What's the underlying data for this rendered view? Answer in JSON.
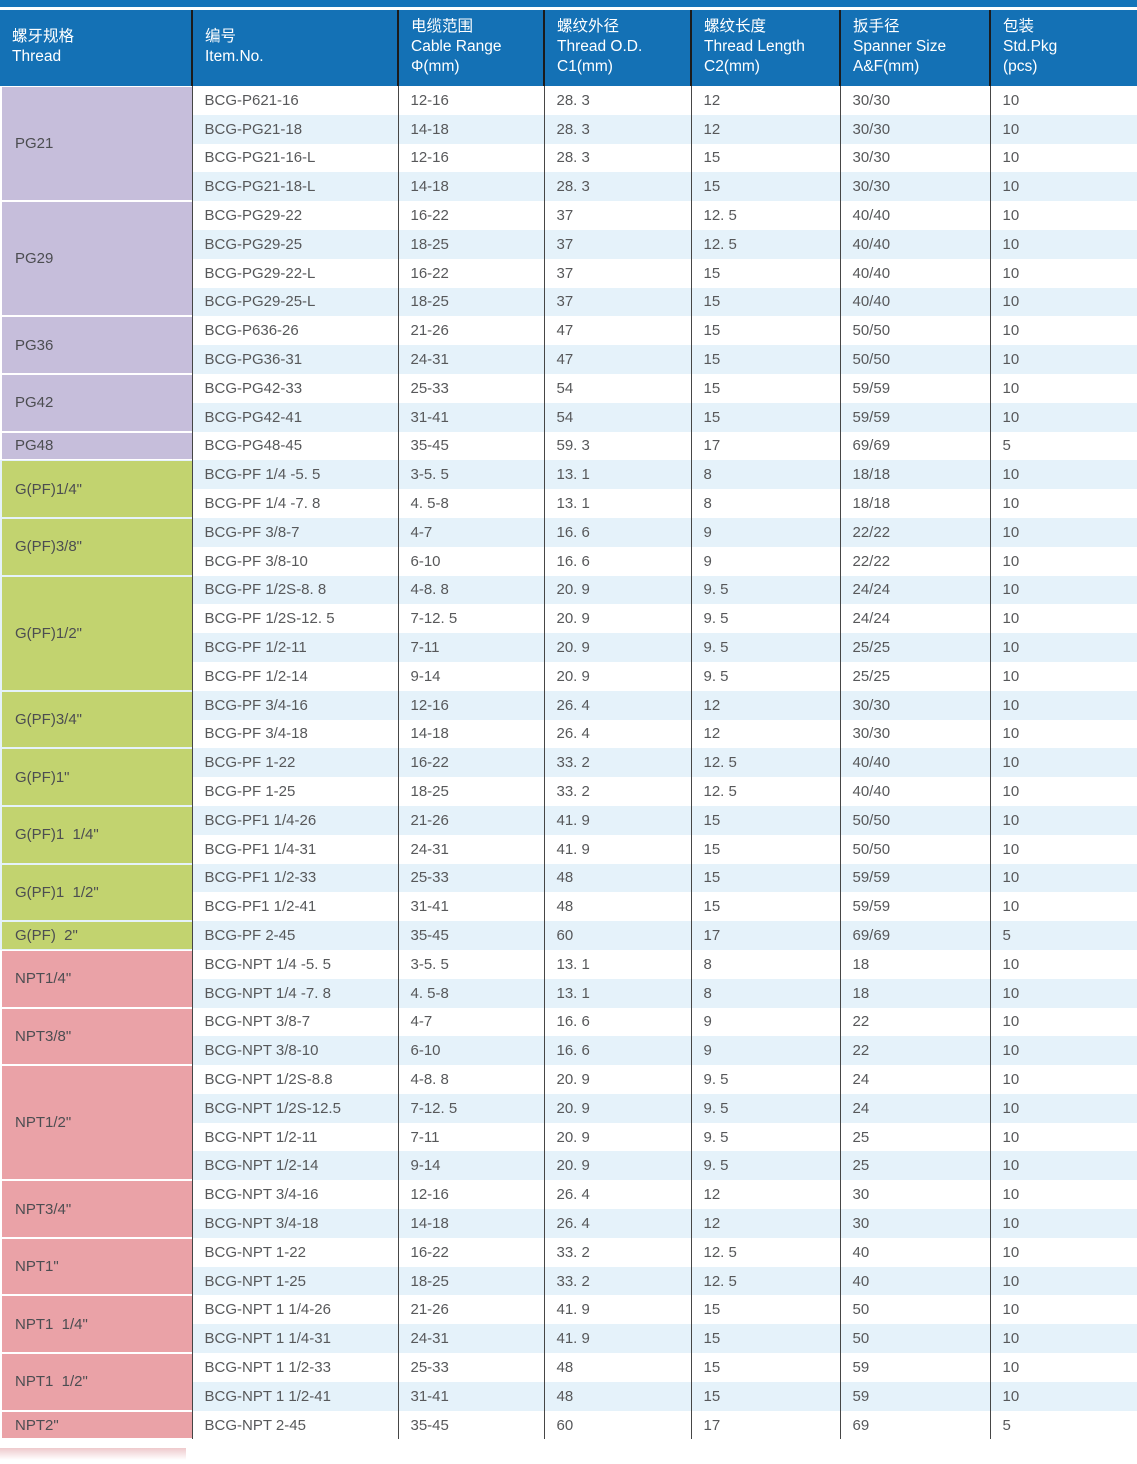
{
  "colors": {
    "top_strip": "#1474b9",
    "header_bg": "#1471b5",
    "header_text": "#ffffff",
    "row_bg": "#ffffff",
    "row_alt_bg": "#e5f2fa",
    "group_pg_bg": "#c6bedb",
    "group_gpf_bg": "#c2d36f",
    "group_npt_bg": "#eaa2a7",
    "body_text": "#57585a",
    "group_text": "#4c4d51",
    "bottom_fade": "#eec9cc"
  },
  "table": {
    "columns": [
      {
        "zh": "螺牙规格",
        "en": "Thread",
        "sub": ""
      },
      {
        "zh": "编号",
        "en": "Item.No.",
        "sub": ""
      },
      {
        "zh": "电缆范围",
        "en": "Cable Range",
        "sub": "Φ(mm)"
      },
      {
        "zh": "螺纹外径",
        "en": "Thread O.D.",
        "sub": "C1(mm)"
      },
      {
        "zh": "螺纹长度",
        "en": "Thread Length",
        "sub": "C2(mm)"
      },
      {
        "zh": "扳手径",
        "en": "Spanner Size",
        "sub": "A&F(mm)"
      },
      {
        "zh": "包装",
        "en": "Std.Pkg",
        "sub": "(pcs)"
      }
    ],
    "groups": [
      {
        "thread": "PG21",
        "color_key": "pg",
        "rows": [
          [
            "BCG-P621-16",
            "12-16",
            "28. 3",
            "12",
            "30/30",
            "10"
          ],
          [
            "BCG-PG21-18",
            "14-18",
            "28. 3",
            "12",
            "30/30",
            "10"
          ],
          [
            "BCG-PG21-16-L",
            "12-16",
            "28. 3",
            "15",
            "30/30",
            "10"
          ],
          [
            "BCG-PG21-18-L",
            "14-18",
            "28. 3",
            "15",
            "30/30",
            "10"
          ]
        ]
      },
      {
        "thread": "PG29",
        "color_key": "pg",
        "rows": [
          [
            "BCG-PG29-22",
            "16-22",
            "37",
            "12. 5",
            "40/40",
            "10"
          ],
          [
            "BCG-PG29-25",
            "18-25",
            "37",
            "12. 5",
            "40/40",
            "10"
          ],
          [
            "BCG-PG29-22-L",
            "16-22",
            "37",
            "15",
            "40/40",
            "10"
          ],
          [
            "BCG-PG29-25-L",
            "18-25",
            "37",
            "15",
            "40/40",
            "10"
          ]
        ]
      },
      {
        "thread": "PG36",
        "color_key": "pg",
        "rows": [
          [
            "BCG-P636-26",
            "21-26",
            "47",
            "15",
            "50/50",
            "10"
          ],
          [
            "BCG-PG36-31",
            "24-31",
            "47",
            "15",
            "50/50",
            "10"
          ]
        ]
      },
      {
        "thread": "PG42",
        "color_key": "pg",
        "rows": [
          [
            "BCG-PG42-33",
            "25-33",
            "54",
            "15",
            "59/59",
            "10"
          ],
          [
            "BCG-PG42-41",
            "31-41",
            "54",
            "15",
            "59/59",
            "10"
          ]
        ]
      },
      {
        "thread": "PG48",
        "color_key": "pg",
        "rows": [
          [
            "BCG-PG48-45",
            "35-45",
            "59. 3",
            "17",
            "69/69",
            "5"
          ]
        ]
      },
      {
        "thread": "G(PF)1/4\"",
        "color_key": "gpf",
        "rows": [
          [
            "BCG-PF 1/4 -5. 5",
            "3-5. 5",
            "13. 1",
            "8",
            "18/18",
            "10"
          ],
          [
            "BCG-PF 1/4 -7. 8",
            "4. 5-8",
            "13. 1",
            "8",
            "18/18",
            "10"
          ]
        ]
      },
      {
        "thread": "G(PF)3/8\"",
        "color_key": "gpf",
        "rows": [
          [
            "BCG-PF 3/8-7",
            "4-7",
            "16. 6",
            "9",
            "22/22",
            "10"
          ],
          [
            "BCG-PF 3/8-10",
            "6-10",
            "16. 6",
            "9",
            "22/22",
            "10"
          ]
        ]
      },
      {
        "thread": "G(PF)1/2\"",
        "color_key": "gpf",
        "rows": [
          [
            "BCG-PF 1/2S-8. 8",
            "4-8. 8",
            "20. 9",
            "9. 5",
            "24/24",
            "10"
          ],
          [
            "BCG-PF 1/2S-12. 5",
            "7-12. 5",
            "20. 9",
            "9. 5",
            "24/24",
            "10"
          ],
          [
            "BCG-PF 1/2-11",
            "7-11",
            "20. 9",
            "9. 5",
            "25/25",
            "10"
          ],
          [
            "BCG-PF 1/2-14",
            "9-14",
            "20. 9",
            "9. 5",
            "25/25",
            "10"
          ]
        ]
      },
      {
        "thread": "G(PF)3/4\"",
        "color_key": "gpf",
        "rows": [
          [
            "BCG-PF 3/4-16",
            "12-16",
            "26. 4",
            "12",
            "30/30",
            "10"
          ],
          [
            "BCG-PF 3/4-18",
            "14-18",
            "26. 4",
            "12",
            "30/30",
            "10"
          ]
        ]
      },
      {
        "thread": "G(PF)1\"",
        "color_key": "gpf",
        "rows": [
          [
            "BCG-PF 1-22",
            "16-22",
            "33. 2",
            "12. 5",
            "40/40",
            "10"
          ],
          [
            "BCG-PF 1-25",
            "18-25",
            "33. 2",
            "12. 5",
            "40/40",
            "10"
          ]
        ]
      },
      {
        "thread": "G(PF)1  1/4\"",
        "color_key": "gpf",
        "rows": [
          [
            "BCG-PF1 1/4-26",
            "21-26",
            "41. 9",
            "15",
            "50/50",
            "10"
          ],
          [
            "BCG-PF1 1/4-31",
            "24-31",
            "41. 9",
            "15",
            "50/50",
            "10"
          ]
        ]
      },
      {
        "thread": "G(PF)1  1/2\"",
        "color_key": "gpf",
        "rows": [
          [
            "BCG-PF1 1/2-33",
            "25-33",
            "48",
            "15",
            "59/59",
            "10"
          ],
          [
            "BCG-PF1 1/2-41",
            "31-41",
            "48",
            "15",
            "59/59",
            "10"
          ]
        ]
      },
      {
        "thread": "G(PF)  2\"",
        "color_key": "gpf",
        "rows": [
          [
            "BCG-PF 2-45",
            "35-45",
            "60",
            "17",
            "69/69",
            "5"
          ]
        ]
      },
      {
        "thread": "NPT1/4\"",
        "color_key": "npt",
        "rows": [
          [
            "BCG-NPT 1/4 -5. 5",
            "3-5. 5",
            "13. 1",
            "8",
            "18",
            "10"
          ],
          [
            "BCG-NPT 1/4 -7. 8",
            "4. 5-8",
            "13. 1",
            "8",
            "18",
            "10"
          ]
        ]
      },
      {
        "thread": "NPT3/8\"",
        "color_key": "npt",
        "rows": [
          [
            "BCG-NPT 3/8-7",
            "4-7",
            "16. 6",
            "9",
            "22",
            "10"
          ],
          [
            "BCG-NPT 3/8-10",
            "6-10",
            "16. 6",
            "9",
            "22",
            "10"
          ]
        ]
      },
      {
        "thread": "NPT1/2\"",
        "color_key": "npt",
        "rows": [
          [
            "BCG-NPT 1/2S-8.8",
            "4-8. 8",
            "20. 9",
            "9. 5",
            "24",
            "10"
          ],
          [
            "BCG-NPT 1/2S-12.5",
            "7-12. 5",
            "20. 9",
            "9. 5",
            "24",
            "10"
          ],
          [
            "BCG-NPT 1/2-11",
            "7-11",
            "20. 9",
            "9. 5",
            "25",
            "10"
          ],
          [
            "BCG-NPT 1/2-14",
            "9-14",
            "20. 9",
            "9. 5",
            "25",
            "10"
          ]
        ]
      },
      {
        "thread": "NPT3/4\"",
        "color_key": "npt",
        "rows": [
          [
            "BCG-NPT 3/4-16",
            "12-16",
            "26. 4",
            "12",
            "30",
            "10"
          ],
          [
            "BCG-NPT 3/4-18",
            "14-18",
            "26. 4",
            "12",
            "30",
            "10"
          ]
        ]
      },
      {
        "thread": "NPT1\"",
        "color_key": "npt",
        "rows": [
          [
            "BCG-NPT 1-22",
            "16-22",
            "33. 2",
            "12. 5",
            "40",
            "10"
          ],
          [
            "BCG-NPT 1-25",
            "18-25",
            "33. 2",
            "12. 5",
            "40",
            "10"
          ]
        ]
      },
      {
        "thread": "NPT1  1/4\"",
        "color_key": "npt",
        "rows": [
          [
            "BCG-NPT 1 1/4-26",
            "21-26",
            "41. 9",
            "15",
            "50",
            "10"
          ],
          [
            "BCG-NPT 1 1/4-31",
            "24-31",
            "41. 9",
            "15",
            "50",
            "10"
          ]
        ]
      },
      {
        "thread": "NPT1  1/2\"",
        "color_key": "npt",
        "rows": [
          [
            "BCG-NPT 1 1/2-33",
            "25-33",
            "48",
            "15",
            "59",
            "10"
          ],
          [
            "BCG-NPT 1 1/2-41",
            "31-41",
            "48",
            "15",
            "59",
            "10"
          ]
        ]
      },
      {
        "thread": "NPT2\"",
        "color_key": "npt",
        "rows": [
          [
            "BCG-NPT 2-45",
            "35-45",
            "60",
            "17",
            "69",
            "5"
          ]
        ]
      }
    ]
  }
}
